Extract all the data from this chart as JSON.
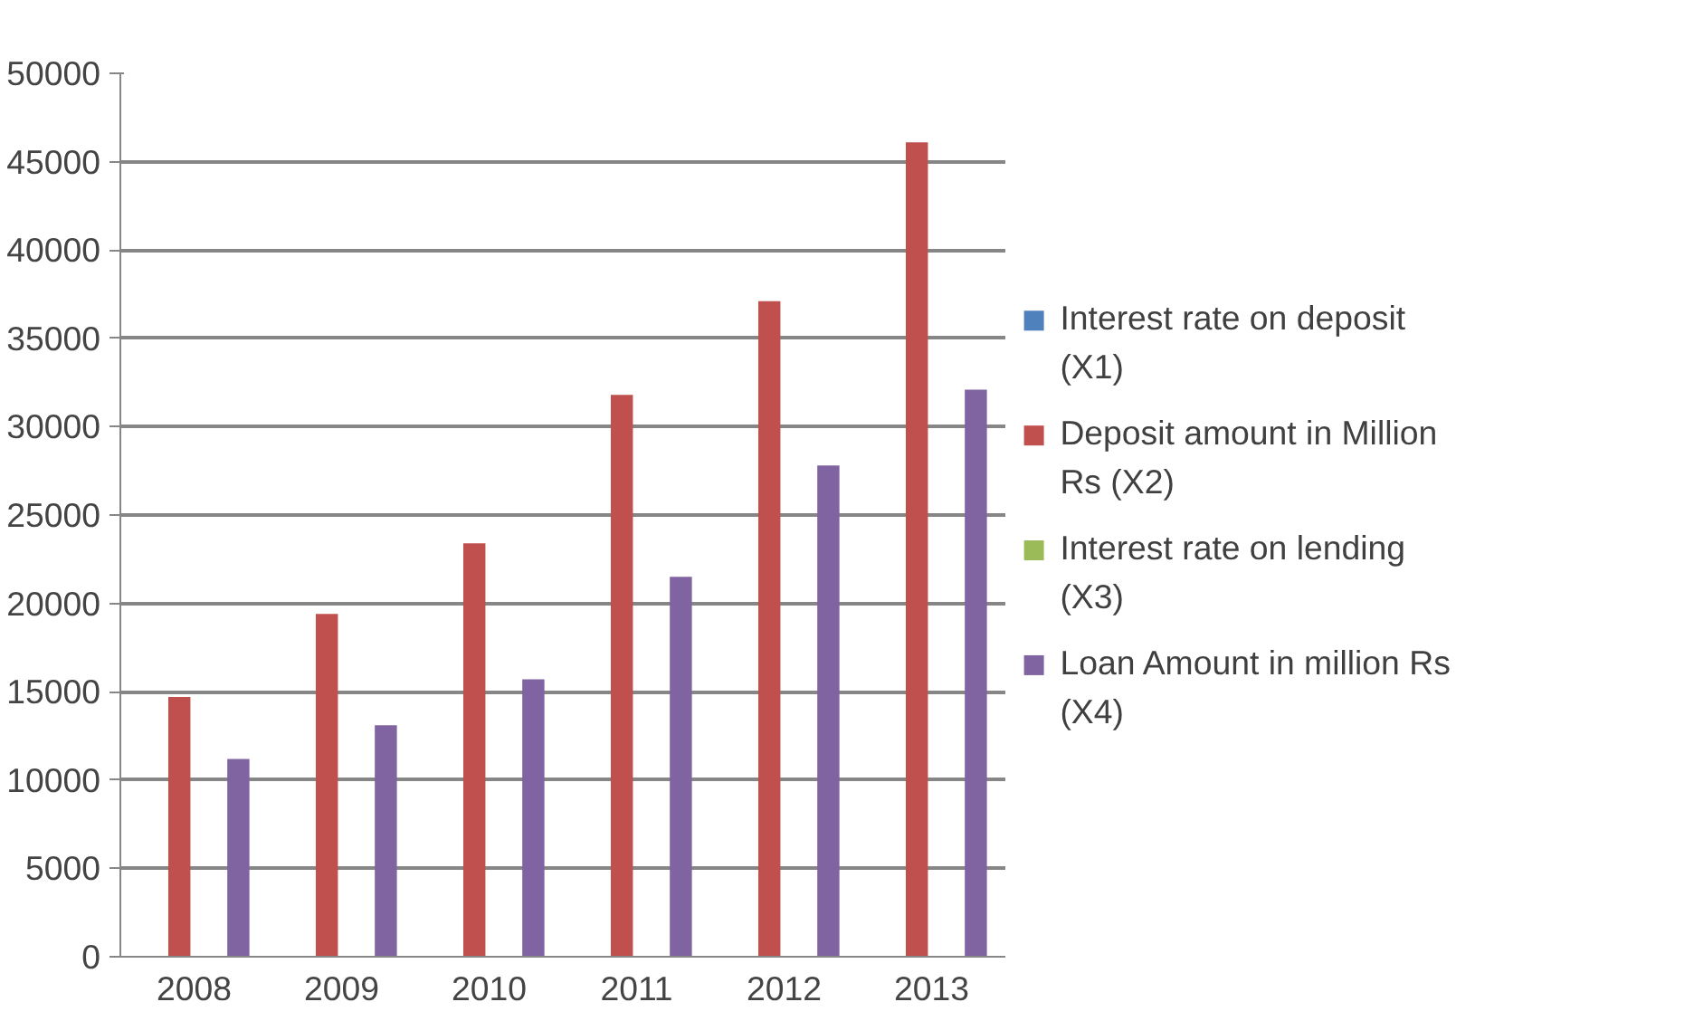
{
  "chart_data": {
    "type": "bar",
    "categories": [
      "2008",
      "2009",
      "2010",
      "2011",
      "2012",
      "2013"
    ],
    "series": [
      {
        "name": "Interest rate on deposit (X1)",
        "color": "#4f81bd",
        "values": [
          0,
          0,
          0,
          0,
          0,
          0
        ]
      },
      {
        "name": "Deposit amount in Million Rs (X2)",
        "color": "#c0504d",
        "values": [
          14700,
          19400,
          23400,
          31800,
          37100,
          46100
        ]
      },
      {
        "name": "Interest rate on lending (X3)",
        "color": "#9bbb59",
        "values": [
          0,
          0,
          0,
          0,
          0,
          0
        ]
      },
      {
        "name": "Loan Amount in million Rs (X4)",
        "color": "#8064a2",
        "values": [
          11200,
          13100,
          15700,
          21500,
          27800,
          32100
        ]
      }
    ],
    "ylim": [
      0,
      50000
    ],
    "yticks": [
      0,
      5000,
      10000,
      15000,
      20000,
      25000,
      30000,
      35000,
      40000,
      45000,
      50000
    ],
    "grid": "y",
    "legend": "right"
  }
}
